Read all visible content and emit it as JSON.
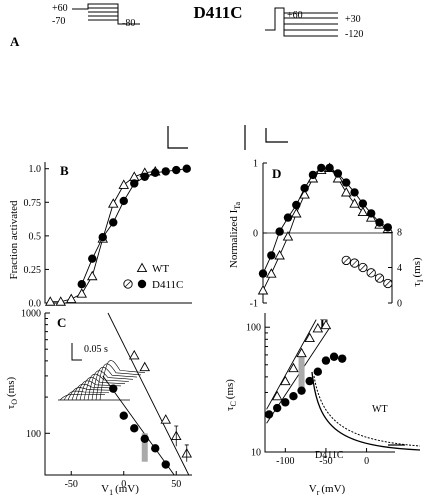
{
  "figure_title": "D411C",
  "panel_labels": {
    "A": "A",
    "B": "B",
    "C": "C",
    "D": "D",
    "E": "E"
  },
  "protocols": {
    "left": {
      "v1": "+60",
      "v2": "-70",
      "v3": "-80"
    },
    "right": {
      "v1": "+60",
      "v2": "+30",
      "v3": "-120"
    }
  },
  "inset_c_scale": "0.05 s",
  "chart_data": [
    {
      "panel": "B",
      "type": "scatter",
      "ylabel": "Fraction activated",
      "xlim": [
        -75,
        65
      ],
      "ylim": [
        0,
        1.05
      ],
      "yticks": [
        0,
        0.25,
        0.5,
        0.75,
        1.0
      ],
      "ytick_labels": [
        "0.0",
        "0.25",
        "0.5",
        "0.75",
        "1.0"
      ],
      "legend": {
        "position": "lower-right"
      },
      "series": [
        {
          "name": "WT",
          "marker": "triangle",
          "x": [
            -70,
            -60,
            -50,
            -40,
            -30,
            -20,
            -10,
            0,
            10,
            20,
            30
          ],
          "y": [
            0.01,
            0.01,
            0.03,
            0.07,
            0.2,
            0.48,
            0.74,
            0.88,
            0.94,
            0.97,
            0.98
          ]
        },
        {
          "name": "D411C",
          "marker": "filled-circle",
          "x": [
            -40,
            -30,
            -20,
            -10,
            0,
            10,
            20,
            30,
            40,
            50,
            60
          ],
          "y": [
            0.14,
            0.33,
            0.49,
            0.6,
            0.76,
            0.89,
            0.94,
            0.97,
            0.98,
            0.99,
            1.0
          ]
        }
      ]
    },
    {
      "panel": "C",
      "type": "scatter",
      "ylabel": "τ",
      "ylabel_sub": "O",
      "ylabel_unit": "(ms)",
      "xlabel": "V",
      "xlabel_sub": "1",
      "xlabel_unit": "(mV)",
      "yscale": "log",
      "ylim": [
        45,
        1000
      ],
      "xlim": [
        -75,
        65
      ],
      "yticks": [
        100,
        1000
      ],
      "ytick_labels": [
        "100",
        "1000"
      ],
      "xticks": [
        -50,
        0,
        50
      ],
      "xtick_labels": [
        "-50",
        "0",
        "50"
      ],
      "series": [
        {
          "marker": "triangle",
          "x": [
            10,
            20,
            40,
            50,
            60
          ],
          "y": [
            445,
            355,
            130,
            95,
            68
          ]
        },
        {
          "marker": "filled-circle",
          "x": [
            -10,
            0,
            10,
            20,
            30,
            40
          ],
          "y": [
            235,
            140,
            110,
            90,
            75,
            55
          ]
        }
      ]
    },
    {
      "panel": "D",
      "type": "scatter",
      "ylabel": "Normalized I",
      "ylabel_sub": "Ta",
      "xlim": [
        -120,
        35
      ],
      "ylim": [
        -1,
        1
      ],
      "yticks": [
        -1,
        0,
        1
      ],
      "ytick_labels": [
        "-1",
        "0",
        "1"
      ],
      "right_ylabel": "τ",
      "right_ylabel_sub": "I",
      "right_ylabel_unit": "(ms)",
      "right_yticks": [
        0,
        4,
        8
      ],
      "right_ytick_labels": [
        "0",
        "4",
        "8"
      ],
      "series": [
        {
          "marker": "triangle",
          "x": [
            -120,
            -110,
            -100,
            -90,
            -80,
            -70,
            -60,
            -50,
            -40,
            -30,
            -20,
            -10,
            0,
            10,
            20,
            30
          ],
          "y": [
            -0.82,
            -0.58,
            -0.32,
            -0.05,
            0.28,
            0.55,
            0.78,
            0.9,
            0.93,
            0.78,
            0.58,
            0.42,
            0.3,
            0.22,
            0.12,
            0.06
          ]
        },
        {
          "marker": "filled-circle",
          "x": [
            -120,
            -110,
            -100,
            -90,
            -80,
            -70,
            -60,
            -50,
            -40,
            -30,
            -20,
            -10,
            0,
            10,
            20,
            30
          ],
          "y": [
            -0.58,
            -0.32,
            0.02,
            0.22,
            0.4,
            0.64,
            0.83,
            0.93,
            0.93,
            0.85,
            0.72,
            0.58,
            0.42,
            0.28,
            0.15,
            0.08
          ]
        },
        {
          "marker": "open-circle",
          "axis": "right",
          "x": [
            -20,
            -10,
            0,
            10,
            20,
            30
          ],
          "y": [
            4.8,
            4.5,
            4.0,
            3.4,
            2.8,
            2.2
          ]
        }
      ]
    },
    {
      "panel": "E",
      "type": "scatter",
      "ylabel": "τ",
      "ylabel_sub": "C",
      "ylabel_unit": "(ms)",
      "xlabel": "V",
      "xlabel_sub": "r",
      "xlabel_unit": "(mV)",
      "yscale": "log",
      "ylim": [
        10,
        130
      ],
      "xlim": [
        -125,
        35
      ],
      "yticks": [
        10,
        100
      ],
      "ytick_labels": [
        "10",
        "100"
      ],
      "xticks": [
        -100,
        -50,
        0
      ],
      "xtick_labels": [
        "-100",
        "-50",
        "0"
      ],
      "inset_labels": [
        "WT",
        "D411C"
      ],
      "series": [
        {
          "marker": "triangle",
          "x": [
            -110,
            -100,
            -90,
            -80,
            -70,
            -60,
            -50
          ],
          "y": [
            28,
            37,
            47,
            62,
            82,
            98,
            104
          ]
        },
        {
          "marker": "filled-circle",
          "x": [
            -120,
            -110,
            -100,
            -90,
            -80,
            -70,
            -60,
            -50,
            -40,
            -30
          ],
          "y": [
            20,
            22.5,
            25,
            28,
            31,
            37,
            44,
            54,
            58,
            56
          ]
        }
      ]
    }
  ]
}
